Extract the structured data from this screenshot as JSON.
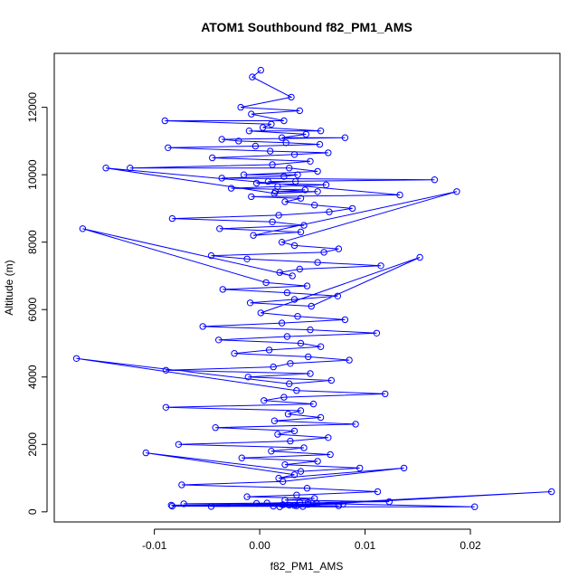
{
  "chart_data": {
    "type": "line",
    "title": "ATOM1 Southbound f82_PM1_AMS",
    "xlabel": "f82_PM1_AMS",
    "ylabel": "Altitude (m)",
    "xlim": [
      -0.0195,
      0.0285
    ],
    "ylim": [
      -300,
      13600
    ],
    "x_ticks": [
      -0.01,
      0.0,
      0.01,
      0.02
    ],
    "x_tick_labels": [
      "-0.01",
      "0.00",
      "0.01",
      "0.02"
    ],
    "y_ticks": [
      0,
      2000,
      4000,
      6000,
      8000,
      10000,
      12000
    ],
    "y_tick_labels": [
      "0",
      "2000",
      "4000",
      "6000",
      "8000",
      "10000",
      "12000"
    ],
    "grid": false,
    "legend": "none",
    "series_color": "#0000ff",
    "marker": "open-circle",
    "series": [
      {
        "x": [
          0.0001,
          -0.0007,
          0.003,
          -0.0018,
          0.0038,
          -0.0008,
          0.0023,
          -0.009,
          0.0011,
          0.0003,
          0.0058,
          -0.001,
          0.0044,
          0.0021,
          0.0081,
          -0.0036,
          -0.002,
          0.0025,
          0.0057,
          -0.0004,
          -0.0087,
          0.001,
          0.0065,
          0.0033,
          -0.0045,
          0.0048,
          0.0012,
          -0.0123,
          0.0028,
          0.0055,
          -0.0015,
          0.0036,
          0.0023,
          -0.0036,
          0.0166,
          0.0008,
          0.0034,
          -0.0003,
          0.0063,
          0.0017,
          -0.0027,
          0.0043,
          0.0015,
          0.0055,
          0.0014,
          -0.0146,
          0.0133,
          -0.0008,
          0.0039,
          0.0024,
          0.0052,
          0.0088,
          0.0066,
          0.0018,
          -0.0083,
          0.0012,
          0.0042,
          -0.0038,
          0.0039,
          -0.0006,
          0.0187,
          0.0021,
          0.0033,
          0.0075,
          0.0061,
          -0.0046,
          -0.0012,
          0.0055,
          0.0115,
          0.0038,
          0.0019,
          0.0031,
          -0.0168,
          0.0006,
          0.0045,
          -0.0035,
          0.0026,
          0.0074,
          0.0033,
          -0.0009,
          0.0049,
          0.0152,
          0.0001,
          0.0036,
          0.0081,
          0.0021,
          -0.0054,
          0.0048,
          0.0111,
          0.0026,
          -0.0039,
          0.0039,
          0.0058,
          0.0009,
          -0.0024,
          0.0046,
          0.0085,
          0.0029,
          0.0013,
          -0.0089,
          0.0048,
          -0.0011,
          0.0068,
          0.0028,
          -0.0174,
          0.0035,
          0.0119,
          0.0023,
          0.0004,
          0.0051,
          -0.0089,
          0.0039,
          0.0027,
          0.0058,
          0.0014,
          0.0091,
          -0.0042,
          0.0033,
          0.0017,
          0.0065,
          0.0029,
          -0.0077,
          0.0042,
          0.0011,
          0.0067,
          -0.0017,
          0.0055,
          0.0024,
          0.0095,
          0.0039,
          -0.0108,
          0.0033,
          0.0018,
          0.0137,
          0.0022,
          -0.0074,
          0.0045,
          0.0112,
          0.0035,
          -0.0012,
          0.0052,
          0.0024,
          0.0123,
          0.0038,
          0.0007,
          -0.0072,
          0.0046,
          0.0028,
          0.0277,
          0.0035,
          -0.0083,
          0.0041,
          0.0019,
          0.0204,
          0.0054,
          -0.0046,
          0.0013,
          0.0075,
          0.0033,
          -0.0084,
          0.0022,
          0.0079,
          -0.0003,
          0.0046
        ],
        "y": [
          13100,
          12900,
          12300,
          12000,
          11900,
          11800,
          11600,
          11600,
          11500,
          11400,
          11300,
          11300,
          11200,
          11100,
          11100,
          11050,
          11000,
          10950,
          10900,
          10850,
          10800,
          10700,
          10650,
          10600,
          10500,
          10400,
          10300,
          10200,
          10200,
          10100,
          10000,
          10000,
          9950,
          9900,
          9850,
          9800,
          9800,
          9750,
          9700,
          9650,
          9600,
          9550,
          9500,
          9500,
          9450,
          10200,
          9400,
          9350,
          9300,
          9200,
          9100,
          9000,
          8900,
          8800,
          8700,
          8600,
          8500,
          8400,
          8300,
          8200,
          9500,
          8000,
          7900,
          7800,
          7700,
          7600,
          7500,
          7400,
          7300,
          7200,
          7100,
          7000,
          8400,
          6800,
          6700,
          6600,
          6500,
          6400,
          6300,
          6200,
          6100,
          7550,
          5900,
          5800,
          5700,
          5600,
          5500,
          5400,
          5300,
          5200,
          5100,
          5000,
          4900,
          4800,
          4700,
          4600,
          4500,
          4400,
          4300,
          4200,
          4100,
          4000,
          3900,
          3800,
          4550,
          3600,
          3500,
          3400,
          3300,
          3200,
          3100,
          3000,
          2900,
          2800,
          2700,
          2600,
          2500,
          2400,
          2300,
          2200,
          2100,
          2000,
          1900,
          1800,
          1700,
          1600,
          1500,
          1400,
          1300,
          1200,
          1750,
          1100,
          1000,
          1300,
          900,
          800,
          700,
          600,
          500,
          450,
          400,
          350,
          300,
          280,
          260,
          240,
          220,
          200,
          600,
          180,
          170,
          160,
          150,
          150,
          250,
          160,
          170,
          180,
          190,
          200,
          210,
          230,
          250,
          280
        ]
      }
    ]
  }
}
